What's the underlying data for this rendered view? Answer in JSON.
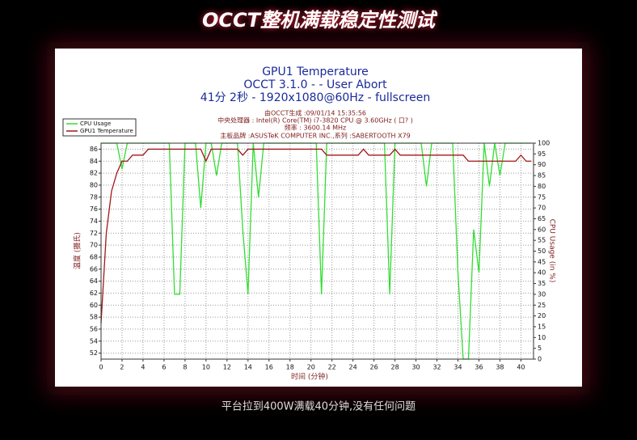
{
  "page_title": "OCCT整机满载稳定性测试",
  "caption": "平台拉到400W满载40分钟,没有任何问题",
  "chart_data": {
    "type": "line",
    "title": "GPU1 Temperature",
    "subtitle": [
      "OCCT 3.1.0 -  - User Abort",
      "41分 2秒 - 1920x1080@60Hz - fullscreen"
    ],
    "info": [
      "由OCCT生成 :09/01/14 15:35:56",
      "中央处理器 : Intel(R) Core(TM) i7-3820 CPU @ 3.60GHz ( 口? )",
      "频率 : 3600.14 MHz",
      "主板品牌 :ASUSTeK COMPUTER INC.,系列 :SABERTOOTH X79"
    ],
    "x_label": "时间 (分钟)",
    "y_label": "温度 (摄氏)",
    "y2_label": "CPU Usage (in %)",
    "x": [
      0,
      0.5,
      1,
      1.5,
      2,
      2.5,
      3,
      3.5,
      4,
      4.5,
      5,
      5.5,
      6,
      6.5,
      7,
      7.5,
      8,
      8.5,
      9,
      9.5,
      10,
      10.5,
      11,
      11.5,
      12,
      12.5,
      13,
      13.5,
      14,
      14.5,
      15,
      15.5,
      16,
      16.5,
      17,
      17.5,
      18,
      18.5,
      19,
      19.5,
      20,
      20.5,
      21,
      21.5,
      22,
      22.5,
      23,
      23.5,
      24,
      24.5,
      25,
      25.5,
      26,
      26.5,
      27,
      27.5,
      28,
      28.5,
      29,
      29.5,
      30,
      30.5,
      31,
      31.5,
      32,
      32.5,
      33,
      33.5,
      34,
      34.5,
      35,
      35.5,
      36,
      36.5,
      37,
      37.5,
      38,
      38.5,
      39,
      39.5,
      40,
      40.5,
      41
    ],
    "series": [
      {
        "name": "CPU Usage",
        "color": "#33dd33",
        "axis": "y2",
        "values": [
          100,
          100,
          100,
          100,
          88,
          100,
          100,
          100,
          100,
          100,
          100,
          100,
          100,
          100,
          30,
          30,
          100,
          100,
          100,
          70,
          100,
          100,
          85,
          100,
          100,
          100,
          100,
          60,
          30,
          100,
          75,
          100,
          100,
          100,
          100,
          100,
          100,
          100,
          100,
          100,
          100,
          100,
          30,
          100,
          100,
          100,
          100,
          100,
          100,
          100,
          100,
          100,
          100,
          100,
          100,
          30,
          100,
          100,
          100,
          100,
          100,
          100,
          80,
          100,
          100,
          100,
          100,
          100,
          40,
          0,
          0,
          60,
          40,
          100,
          80,
          100,
          85,
          100,
          100,
          100,
          100,
          100,
          100
        ]
      },
      {
        "name": "GPU1 Temperature",
        "color": "#a01818",
        "values": [
          57,
          72,
          79,
          82,
          84,
          84,
          85,
          85,
          85,
          86,
          86,
          86,
          86,
          86,
          86,
          86,
          86,
          86,
          86,
          86,
          84,
          86,
          86,
          86,
          86,
          86,
          86,
          85,
          86,
          86,
          86,
          86,
          86,
          86,
          86,
          86,
          86,
          86,
          86,
          86,
          86,
          86,
          86,
          85,
          85,
          85,
          85,
          85,
          85,
          85,
          86,
          85,
          85,
          85,
          85,
          85,
          86,
          85,
          85,
          85,
          85,
          85,
          85,
          85,
          85,
          85,
          85,
          85,
          85,
          85,
          84,
          84,
          84,
          84,
          84,
          84,
          84,
          84,
          84,
          84,
          85,
          84,
          84
        ]
      }
    ],
    "xlim": [
      0,
      41.2
    ],
    "xticks": [
      0,
      2,
      4,
      6,
      8,
      10,
      12,
      14,
      16,
      18,
      20,
      22,
      24,
      26,
      28,
      30,
      32,
      34,
      36,
      38,
      40
    ],
    "ylim": [
      51,
      87
    ],
    "yticks": [
      52,
      54,
      56,
      58,
      60,
      62,
      64,
      66,
      68,
      70,
      72,
      74,
      76,
      78,
      80,
      82,
      84,
      86
    ],
    "y2lim": [
      0,
      100
    ],
    "y2ticks": [
      0,
      5,
      10,
      15,
      20,
      25,
      30,
      35,
      40,
      45,
      50,
      55,
      60,
      65,
      70,
      75,
      80,
      85,
      90,
      95,
      100
    ],
    "grid": true,
    "legend": "top-left"
  }
}
